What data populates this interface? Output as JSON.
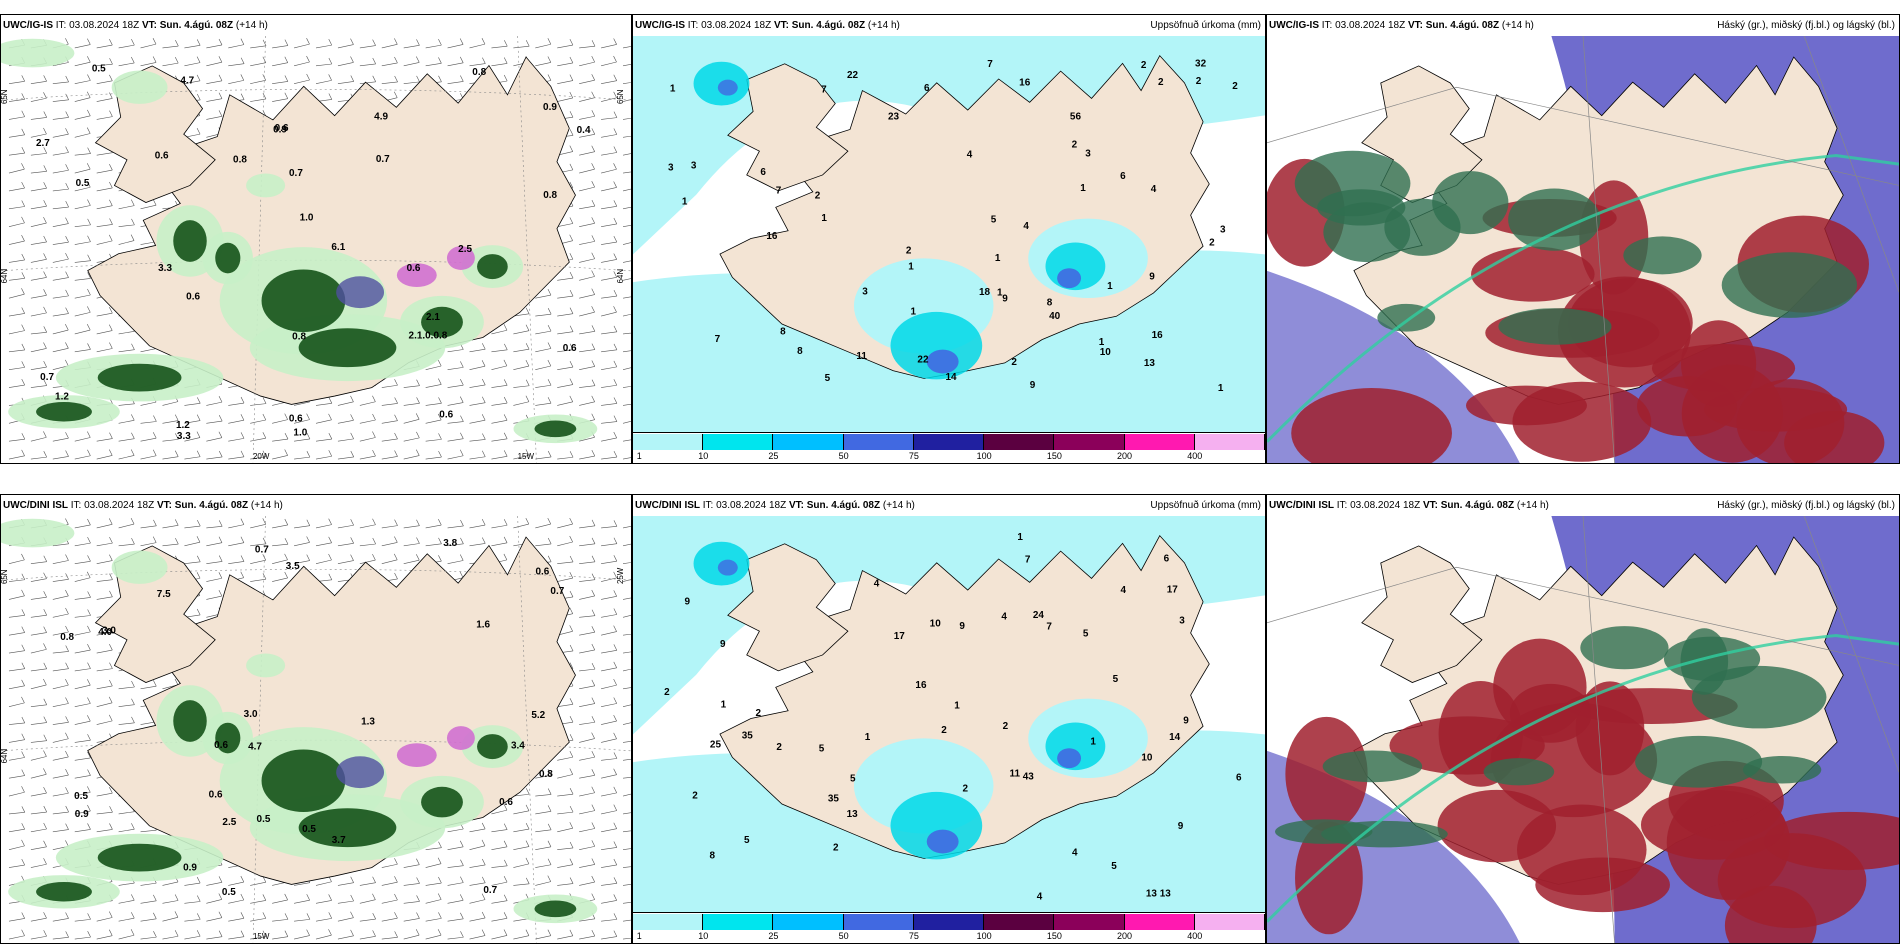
{
  "panels": [
    {
      "model": "UWC/IG-IS",
      "it_label": "IT:",
      "it": "03.08.2024 18Z",
      "vt_label": "VT:",
      "vt": "Sun. 4.ágú. 08Z",
      "lead": "(+14 h)",
      "right_title": "",
      "type": "wind",
      "lon_labels": [
        "20W",
        "15W"
      ],
      "lat_labels": [
        "65N",
        "64N",
        "65N",
        "64N"
      ],
      "values": [
        "0.7",
        "0.6",
        "1.0",
        "0.6",
        "0.6",
        "0.7",
        "0.4",
        "0.5",
        "0.8",
        "0.7",
        "0.6",
        "0.5",
        "0.6",
        "6.1",
        "4.7",
        "2.5",
        "3.3",
        "0.6",
        "0.6",
        "0.8",
        "4.9",
        "2.7",
        "1.2",
        "0.9",
        "0.8",
        "3.3",
        "1.0",
        "0.9",
        "2.1",
        "1.2",
        "2.1.0.0.8",
        "0.8"
      ]
    },
    {
      "model": "UWC/IG-IS",
      "it_label": "IT:",
      "it": "03.08.2024 18Z",
      "vt_label": "VT:",
      "vt": "Sun. 4.ágú. 08Z",
      "lead": "(+14 h)",
      "right_title": "Uppsöfnuð úrkoma (mm)",
      "type": "precip",
      "values": [
        "9",
        "7",
        "8",
        "6",
        "6",
        "2",
        "2",
        "1",
        "1",
        "8",
        "7",
        "3",
        "2",
        "1",
        "1",
        "2",
        "1",
        "2",
        "1",
        "4",
        "1",
        "9",
        "5",
        "10",
        "4",
        "3",
        "16",
        "7",
        "14",
        "23",
        "40",
        "32",
        "56",
        "11",
        "22",
        "22",
        "7",
        "3",
        "3",
        "8",
        "6",
        "5",
        "2",
        "16",
        "16",
        "9",
        "18",
        "1",
        "1",
        "2",
        "3",
        "4",
        "2",
        "2",
        "1",
        "1",
        "13"
      ]
    },
    {
      "model": "UWC/IG-IS",
      "it_label": "IT:",
      "it": "03.08.2024 18Z",
      "vt_label": "VT:",
      "vt": "Sun. 4.ágú. 08Z",
      "lead": "(+14 h)",
      "right_title": "Háský (gr.), miðský (fj.bl.) og lágský (bl.)",
      "type": "cloud"
    },
    {
      "model": "UWC/DINI ISL",
      "it_label": "IT:",
      "it": "03.08.2024 18Z",
      "vt_label": "VT:",
      "vt": "Sun. 4.ágú. 08Z",
      "lead": "(+14 h)",
      "right_title": "",
      "type": "wind",
      "lon_labels": [
        "15W"
      ],
      "lat_labels": [
        "65N",
        "64N",
        "25W"
      ],
      "values": [
        "0.6",
        "0.5",
        "0.6",
        "0.5",
        "0.5",
        "0.7",
        "0.6",
        "0.8",
        "3.5",
        "0.8",
        "0.5",
        "4.7",
        "4.0",
        "3.4",
        "3.7",
        "2.5",
        "3.8",
        "7.5",
        "5.2",
        "3.0",
        "0.7",
        "0.9",
        "3.0",
        "1.3",
        "0.9",
        "0.6",
        "0.7",
        "1.6"
      ]
    },
    {
      "model": "UWC/DINI ISL",
      "it_label": "IT:",
      "it": "03.08.2024 18Z",
      "vt_label": "VT:",
      "vt": "Sun. 4.ágú. 08Z",
      "lead": "(+14 h)",
      "right_title": "Uppsöfnuð úrkoma (mm)",
      "type": "precip",
      "values": [
        "13 13",
        "35",
        "11",
        "9",
        "9",
        "9",
        "5",
        "5",
        "5",
        "10",
        "7",
        "5",
        "13",
        "4",
        "2",
        "2",
        "1",
        "1",
        "2",
        "8",
        "6",
        "9",
        "5",
        "6",
        "9",
        "1",
        "2",
        "2",
        "16",
        "17",
        "43",
        "25",
        "35",
        "24",
        "17",
        "10",
        "14",
        "4",
        "4",
        "4",
        "5",
        "2",
        "2",
        "1",
        "1",
        "2",
        "3",
        "7",
        "4"
      ]
    },
    {
      "model": "UWC/DINI ISL",
      "it_label": "IT:",
      "it": "03.08.2024 18Z",
      "vt_label": "VT:",
      "vt": "Sun. 4.ágú. 08Z",
      "lead": "(+14 h)",
      "right_title": "Háský (gr.), miðský (fj.bl.) og lágský (bl.)",
      "type": "cloud"
    }
  ],
  "colorbar": {
    "ticks": [
      "1",
      "10",
      "25",
      "50",
      "75",
      "100",
      "150",
      "200",
      "400"
    ],
    "colors": [
      "#b3f5f8",
      "#00e5ee",
      "#00bfff",
      "#4169e1",
      "#2020a0",
      "#5b0040",
      "#8b005a",
      "#ff19b0",
      "#f5b0f0"
    ]
  },
  "colors": {
    "land": "#f3e4d4",
    "precip_light": "#b3f5f8",
    "precip_mid": "#00d8e8",
    "wind_light": "#c8f0c8",
    "wind_dark": "#1d5a22",
    "cloud_high": "#2f6f50",
    "cloud_mid": "#5f5cc8",
    "cloud_low": "#a0202e"
  }
}
